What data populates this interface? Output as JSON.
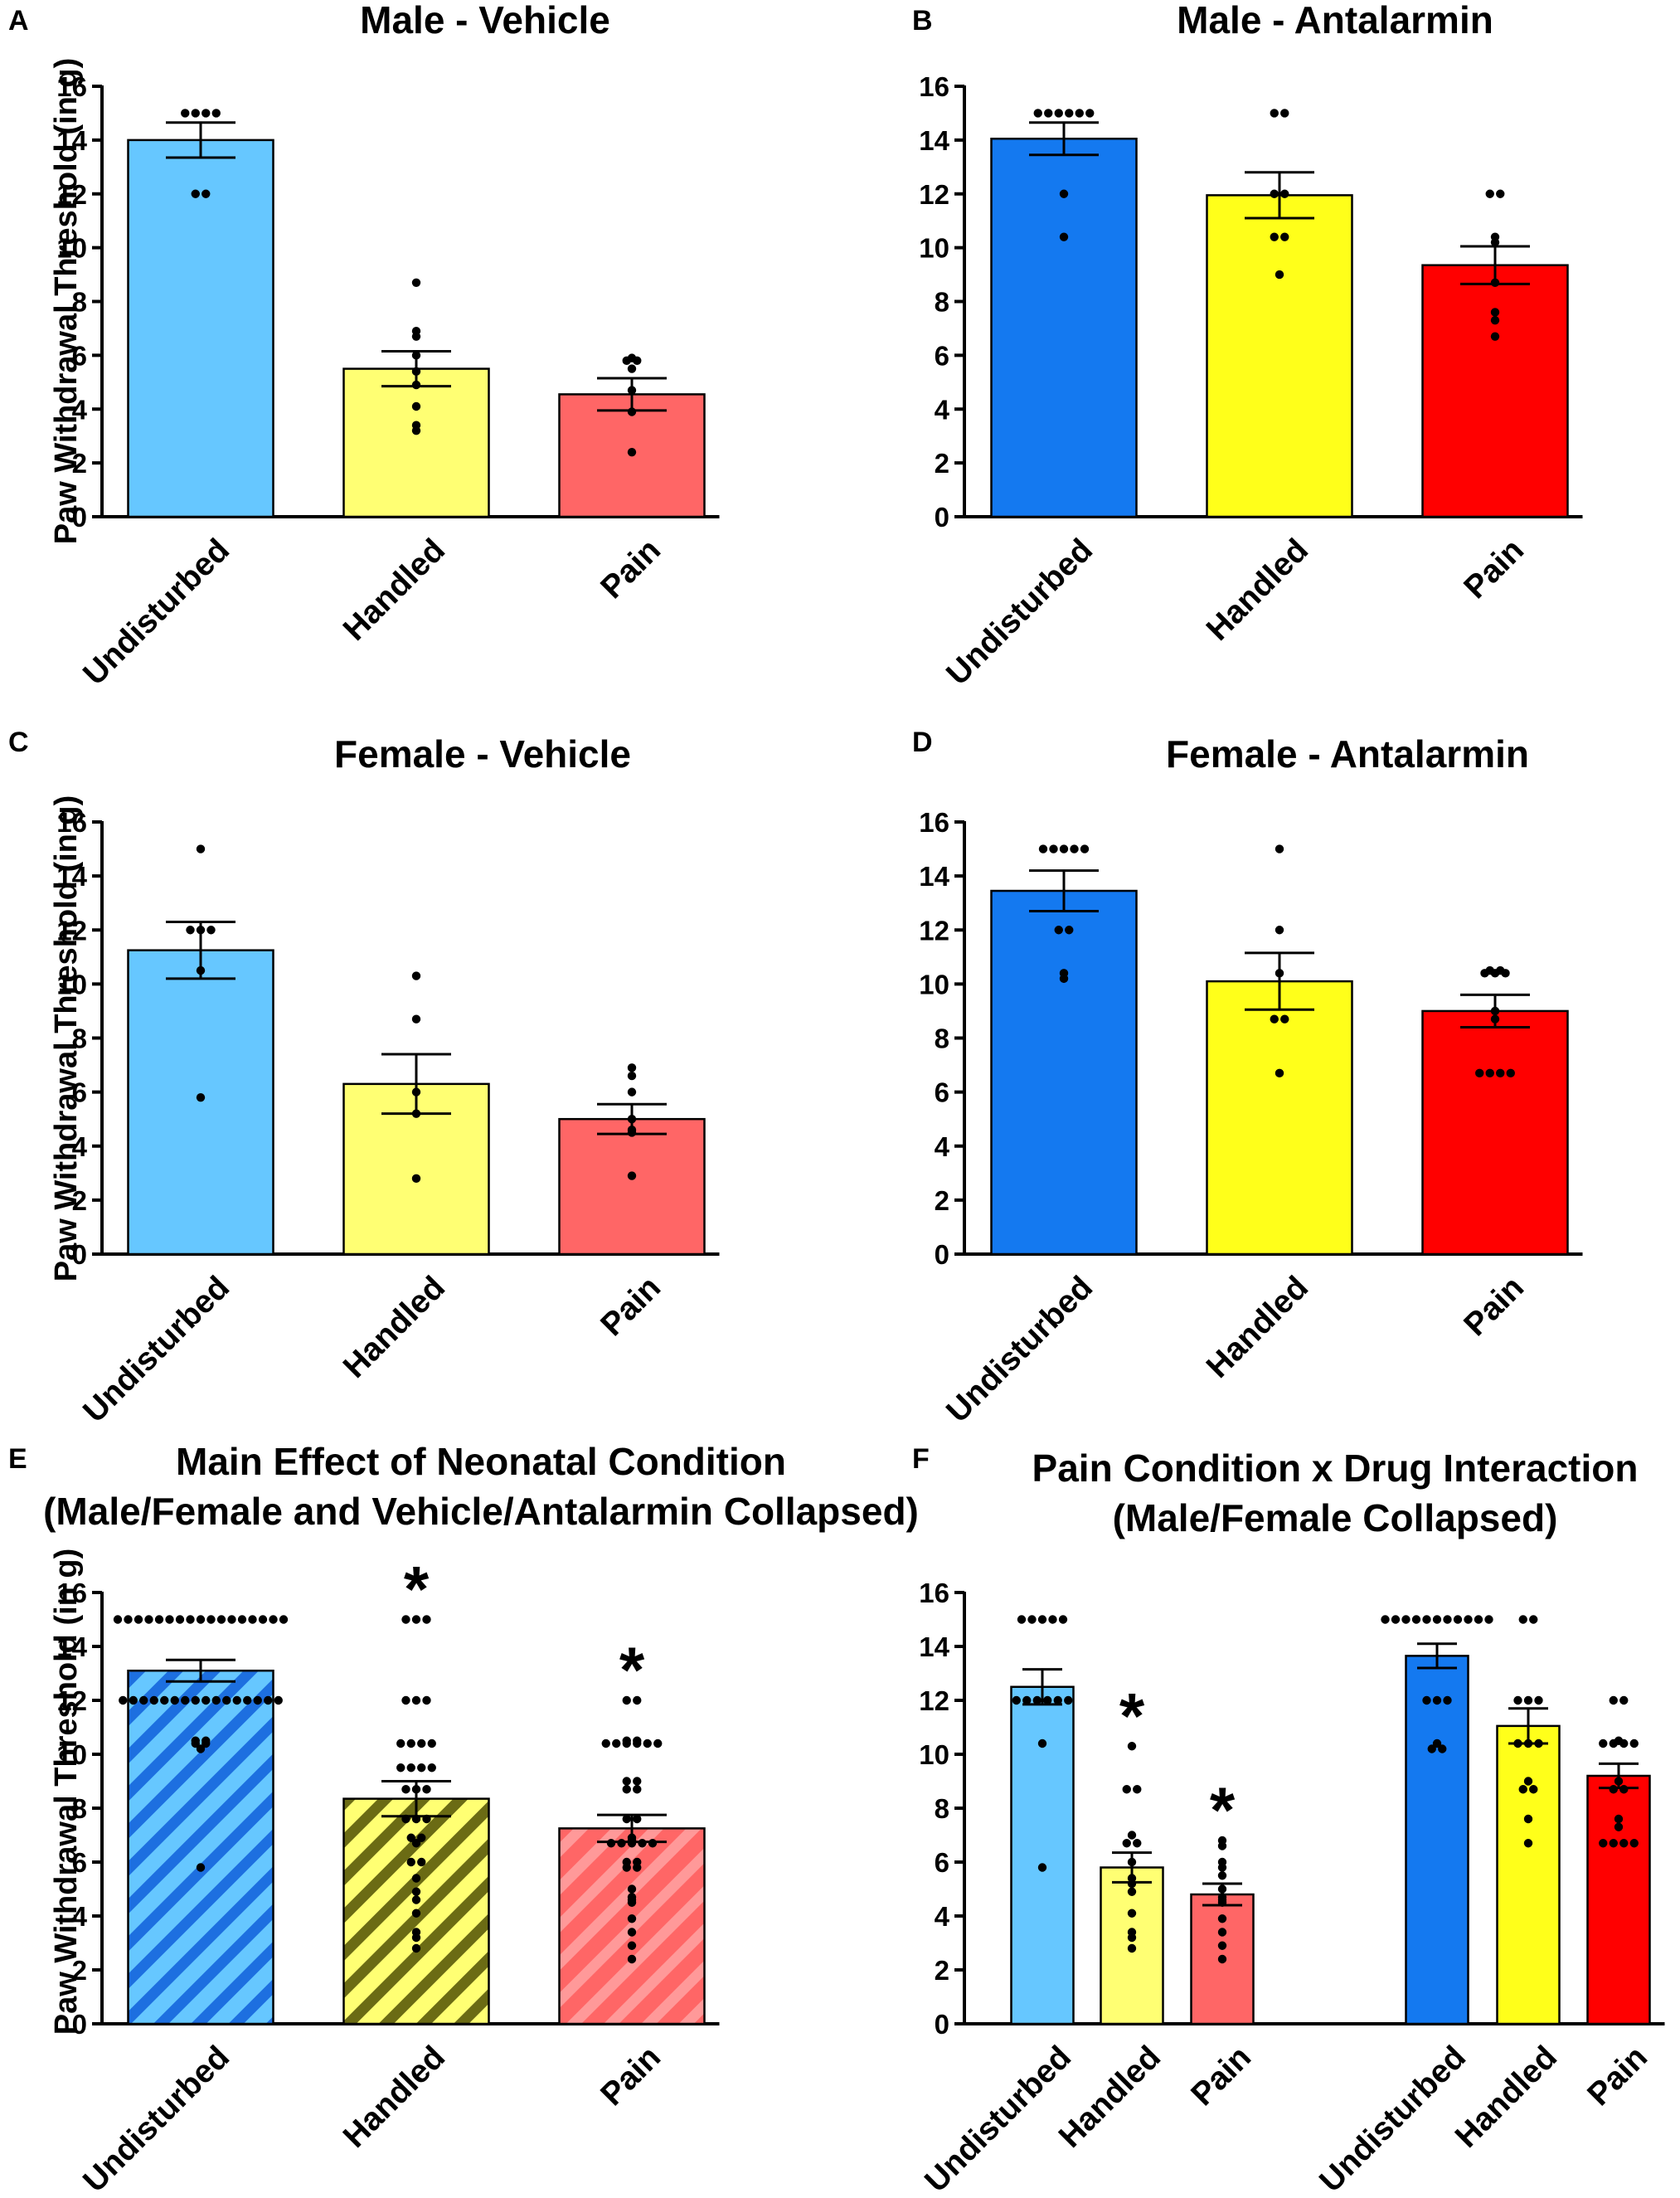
{
  "colors": {
    "light_blue": "#66c7ff",
    "blue": "#1479f0",
    "light_yellow": "#ffff73",
    "yellow": "#ffff1a",
    "light_red": "#ff6666",
    "red": "#ff0000",
    "hatch_blue": "#1d6fe0",
    "hatch_olive": "#6b6b14",
    "hatch_red": "#ff9999"
  },
  "chart_data": [
    {
      "id": "A",
      "type": "bar",
      "panel_label": "A",
      "title": [
        "Male - Vehicle"
      ],
      "ylabel": "Paw Withdrawal Threshold (in g)",
      "ylim": [
        0,
        16
      ],
      "yticks": [
        "0",
        "2",
        "4",
        "6",
        "8",
        "10",
        "12",
        "14",
        "16"
      ],
      "categories": [
        "Undisturbed",
        "Handled",
        "Pain"
      ],
      "values": [
        14.0,
        5.5,
        4.55
      ],
      "sem": [
        0.65,
        0.65,
        0.6
      ],
      "bar_colors": [
        "light_blue",
        "light_yellow",
        "light_red"
      ],
      "points": [
        [
          15,
          15,
          15,
          15,
          12,
          12
        ],
        [
          8.7,
          6.9,
          6.7,
          6.0,
          5.4,
          4.9,
          4.1,
          3.4,
          3.2
        ],
        [
          5.9,
          5.8,
          5.8,
          5.5,
          4.7,
          3.9,
          2.4
        ]
      ]
    },
    {
      "id": "B",
      "type": "bar",
      "panel_label": "B",
      "title": [
        "Male - Antalarmin"
      ],
      "ylabel": "",
      "ylim": [
        0,
        16
      ],
      "yticks": [
        "0",
        "2",
        "4",
        "6",
        "8",
        "10",
        "12",
        "14",
        "16"
      ],
      "categories": [
        "Undisturbed",
        "Handled",
        "Pain"
      ],
      "values": [
        14.05,
        11.95,
        9.35
      ],
      "sem": [
        0.6,
        0.85,
        0.7
      ],
      "bar_colors": [
        "blue",
        "yellow",
        "red"
      ],
      "points": [
        [
          15,
          15,
          15,
          15,
          15,
          15,
          12,
          10.4
        ],
        [
          15,
          15,
          12,
          12,
          10.4,
          10.4,
          9
        ],
        [
          12,
          12,
          10.4,
          10.2,
          8.7,
          7.6,
          7.3,
          6.7
        ]
      ]
    },
    {
      "id": "C",
      "type": "bar",
      "panel_label": "C",
      "title": [
        "Female - Vehicle"
      ],
      "ylabel": "Paw Withdrawal Threshold (in g)",
      "ylim": [
        0,
        16
      ],
      "yticks": [
        "0",
        "2",
        "4",
        "6",
        "8",
        "10",
        "12",
        "14",
        "16"
      ],
      "categories": [
        "Undisturbed",
        "Handled",
        "Pain"
      ],
      "values": [
        11.25,
        6.3,
        5.0
      ],
      "sem": [
        1.05,
        1.1,
        0.55
      ],
      "bar_colors": [
        "light_blue",
        "light_yellow",
        "light_red"
      ],
      "points": [
        [
          15,
          12,
          12,
          12,
          10.5,
          5.8
        ],
        [
          10.3,
          8.7,
          6.0,
          5.2,
          2.8
        ],
        [
          6.9,
          6.6,
          6.0,
          5.0,
          4.6,
          4.5,
          2.9
        ]
      ]
    },
    {
      "id": "D",
      "type": "bar",
      "panel_label": "D",
      "title": [
        "Female - Antalarmin"
      ],
      "ylabel": "",
      "ylim": [
        0,
        16
      ],
      "yticks": [
        "0",
        "2",
        "4",
        "6",
        "8",
        "10",
        "12",
        "14",
        "16"
      ],
      "categories": [
        "Undisturbed",
        "Handled",
        "Pain"
      ],
      "values": [
        13.45,
        10.1,
        9.0
      ],
      "sem": [
        0.75,
        1.05,
        0.6
      ],
      "bar_colors": [
        "blue",
        "yellow",
        "red"
      ],
      "points": [
        [
          15,
          15,
          15,
          15,
          15,
          12,
          12,
          10.4,
          10.2
        ],
        [
          15,
          12,
          10.4,
          8.7,
          8.7,
          6.7
        ],
        [
          10.5,
          10.5,
          10.4,
          10.4,
          10.4,
          9.0,
          8.7,
          6.7,
          6.7,
          6.7,
          6.7
        ]
      ]
    },
    {
      "id": "E",
      "type": "bar",
      "panel_label": "E",
      "title": [
        "Main Effect of Neonatal Condition",
        "(Male/Female and Vehicle/Antalarmin Collapsed)"
      ],
      "ylabel": "Paw Withdrawal Threshold (in g)",
      "ylim": [
        0,
        16
      ],
      "yticks": [
        "0",
        "2",
        "4",
        "6",
        "8",
        "10",
        "12",
        "14",
        "16"
      ],
      "categories": [
        "Undisturbed",
        "Handled",
        "Pain"
      ],
      "values": [
        13.1,
        8.35,
        7.25
      ],
      "sem": [
        0.4,
        0.65,
        0.5
      ],
      "bar_colors": [
        "light_blue",
        "light_yellow",
        "light_red"
      ],
      "hatch_colors": [
        "hatch_blue",
        "hatch_olive",
        "hatch_red"
      ],
      "significance": [
        "",
        "*",
        "*"
      ],
      "points": [
        [
          15,
          15,
          15,
          15,
          15,
          15,
          15,
          15,
          15,
          15,
          15,
          15,
          15,
          15,
          15,
          15,
          15,
          12,
          12,
          12,
          12,
          12,
          12,
          12,
          12,
          12,
          12,
          12,
          12,
          12,
          12,
          12,
          12,
          10.5,
          10.5,
          10.4,
          10.4,
          10.2,
          5.8
        ],
        [
          15,
          15,
          15,
          12,
          12,
          12,
          10.4,
          10.4,
          10.4,
          10.4,
          9.5,
          9.5,
          9.5,
          9.5,
          8.7,
          8.7,
          8.7,
          7.6,
          7.6,
          7.6,
          6.9,
          6.9,
          6.7,
          6.0,
          6.0,
          5.4,
          4.9,
          4.6,
          4.1,
          3.4,
          3.2,
          2.8
        ],
        [
          12,
          12,
          10.5,
          10.5,
          10.4,
          10.4,
          10.4,
          10.4,
          10.4,
          10.4,
          9.0,
          9.0,
          8.7,
          8.7,
          7.6,
          7.6,
          6.9,
          6.8,
          6.7,
          6.7,
          6.7,
          6.7,
          6.7,
          6.0,
          6.0,
          5.8,
          5.8,
          5.0,
          4.7,
          4.6,
          4.5,
          3.9,
          3.4,
          2.9,
          2.4
        ]
      ]
    },
    {
      "id": "F",
      "type": "bar",
      "panel_label": "F",
      "title": [
        "Pain Condition x Drug Interaction",
        "(Male/Female Collapsed)"
      ],
      "ylabel": "",
      "ylim": [
        0,
        16
      ],
      "yticks": [
        "0",
        "2",
        "4",
        "6",
        "8",
        "10",
        "12",
        "14",
        "16"
      ],
      "categories": [
        "Undisturbed",
        "Handled",
        "Pain",
        "Undisturbed",
        "Handled",
        "Pain"
      ],
      "values": [
        12.5,
        5.8,
        4.8,
        13.65,
        11.05,
        9.2
      ],
      "sem": [
        0.65,
        0.55,
        0.4,
        0.45,
        0.65,
        0.45
      ],
      "bar_colors": [
        "light_blue",
        "light_yellow",
        "light_red",
        "blue",
        "yellow",
        "red"
      ],
      "significance": [
        "",
        "*",
        "*",
        "",
        "",
        ""
      ],
      "points": [
        [
          15,
          15,
          15,
          15,
          15,
          12,
          12,
          12,
          12,
          12,
          12,
          10.4,
          5.8
        ],
        [
          10.3,
          8.7,
          8.7,
          7.0,
          6.7,
          6.7,
          6.0,
          5.4,
          5.2,
          4.9,
          4.1,
          3.4,
          3.2,
          2.8
        ],
        [
          6.8,
          6.6,
          6.0,
          5.8,
          5.5,
          5.0,
          4.7,
          4.6,
          4.5,
          3.9,
          3.4,
          2.9,
          2.4
        ],
        [
          15,
          15,
          15,
          15,
          15,
          15,
          15,
          15,
          15,
          15,
          15,
          12,
          12,
          12,
          10.4,
          10.2,
          10.2
        ],
        [
          15,
          15,
          12,
          12,
          12,
          10.4,
          10.4,
          10.4,
          9.0,
          8.7,
          8.7,
          7.6,
          6.7
        ],
        [
          12,
          12,
          10.5,
          10.4,
          10.4,
          10.4,
          10.4,
          9.0,
          8.7,
          8.7,
          7.6,
          7.3,
          6.7,
          6.7,
          6.7,
          6.7
        ]
      ]
    }
  ]
}
